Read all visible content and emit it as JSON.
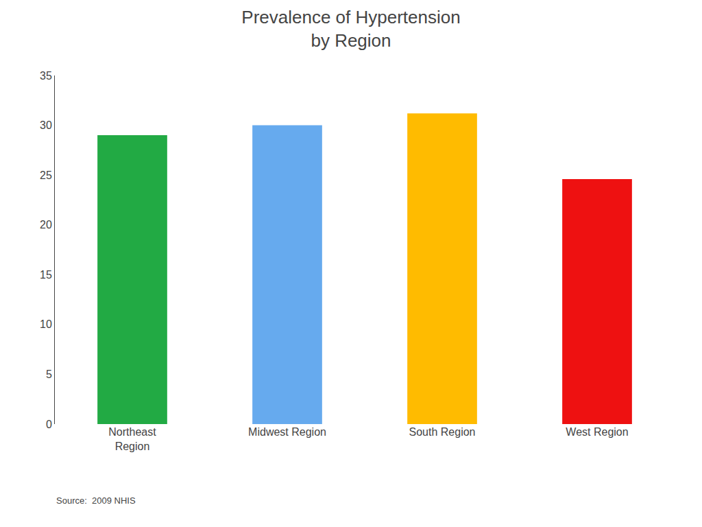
{
  "chart_data": {
    "type": "bar",
    "title": "Prevalence of Hypertension\nby Region",
    "categories": [
      "Northeast\nRegion",
      "Midwest Region",
      "South Region",
      "West Region"
    ],
    "values": [
      29.0,
      30.0,
      31.2,
      24.6
    ],
    "colors": [
      "#22aa44",
      "#66aaee",
      "#ffbb00",
      "#ee1111"
    ],
    "ylim": [
      0,
      35
    ],
    "yticks": [
      0,
      5,
      10,
      15,
      20,
      25,
      30,
      35
    ],
    "grid": false,
    "annotations": [
      "Source:  2009 NHIS"
    ]
  }
}
